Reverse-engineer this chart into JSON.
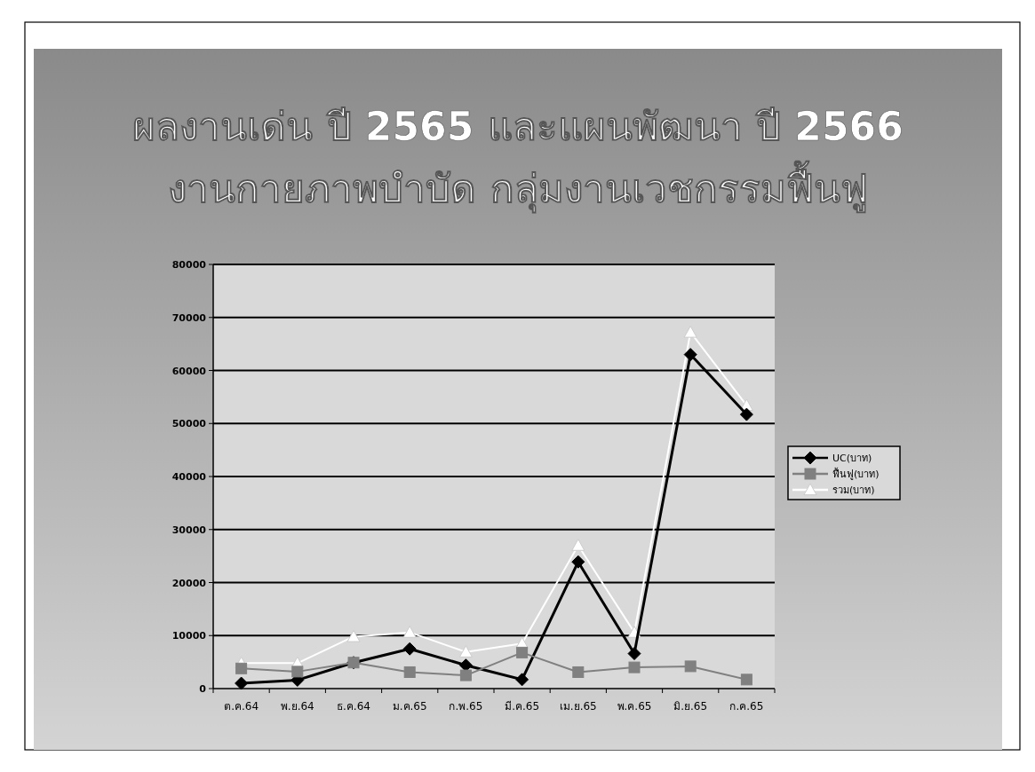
{
  "chart_data": {
    "type": "line",
    "title": "ผลงานเด่น ปี 2565 และแผนพัฒนา ปี 2566",
    "subtitle": "งานกายภาพบำบัด กลุ่มงานเวชกรรมฟื้นฟู",
    "categories": [
      "ต.ค.64",
      "พ.ย.64",
      "ธ.ค.64",
      "ม.ค.65",
      "ก.พ.65",
      "มี.ค.65",
      "เม.ย.65",
      "พ.ค.65",
      "มิ.ย.65",
      "ก.ค.65"
    ],
    "series": [
      {
        "name": "UC(บาท)",
        "color": "#000000",
        "marker": "diamond",
        "values": [
          1000,
          1600,
          4900,
          7500,
          4400,
          1700,
          23900,
          6600,
          63000,
          51700
        ]
      },
      {
        "name": "ฟื้นฟู(บาท)",
        "color": "#808080",
        "marker": "square",
        "values": [
          3800,
          3200,
          4900,
          3100,
          2500,
          6800,
          3100,
          4000,
          4200,
          1700
        ]
      },
      {
        "name": "รวม(บาท)",
        "color": "#ffffff",
        "marker": "triangle",
        "values": [
          4800,
          4800,
          9800,
          10600,
          6900,
          8500,
          27000,
          10600,
          67200,
          53400
        ]
      }
    ],
    "ylim": [
      0,
      80000
    ],
    "yticks": [
      0,
      10000,
      20000,
      30000,
      40000,
      50000,
      60000,
      70000,
      80000
    ],
    "grid": "y",
    "legend": "right"
  }
}
